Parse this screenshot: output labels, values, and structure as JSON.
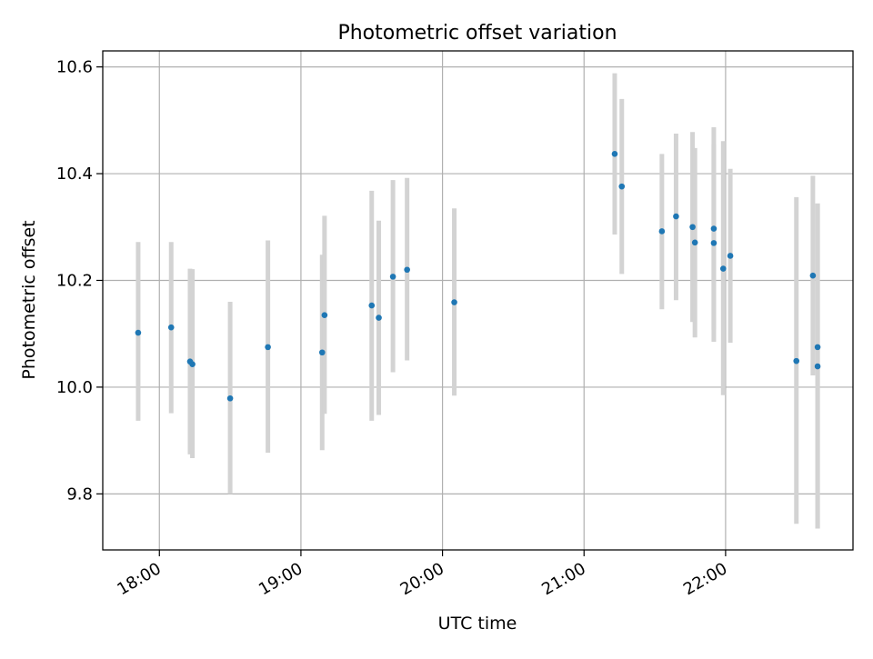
{
  "chart_data": {
    "type": "scatter",
    "title": "Photometric offset variation",
    "xlabel": "UTC time",
    "ylabel": "Photometric offset",
    "xlim": [
      "17:36",
      "22:54"
    ],
    "ylim": [
      9.695,
      10.63
    ],
    "xticks": [
      "18:00",
      "19:00",
      "20:00",
      "21:00",
      "22:00"
    ],
    "yticks": [
      9.8,
      10.0,
      10.2,
      10.4,
      10.6
    ],
    "ytick_labels": [
      "9.8",
      "10.0",
      "10.2",
      "10.4",
      "10.6"
    ],
    "grid": true,
    "colors": {
      "marker": "#1f77b4",
      "errorbar": "#d3d3d3",
      "grid": "#b0b0b0"
    },
    "points": [
      {
        "x": "17:51",
        "y": 10.102,
        "ylow": 9.937,
        "yhigh": 10.272
      },
      {
        "x": "18:05",
        "y": 10.112,
        "ylow": 9.951,
        "yhigh": 10.272
      },
      {
        "x": "18:13",
        "y": 10.048,
        "ylow": 9.874,
        "yhigh": 10.222
      },
      {
        "x": "18:14",
        "y": 10.043,
        "ylow": 9.867,
        "yhigh": 10.221
      },
      {
        "x": "18:30",
        "y": 9.979,
        "ylow": 9.8,
        "yhigh": 10.16
      },
      {
        "x": "18:46",
        "y": 10.075,
        "ylow": 9.877,
        "yhigh": 10.275
      },
      {
        "x": "19:09",
        "y": 10.065,
        "ylow": 9.882,
        "yhigh": 10.248
      },
      {
        "x": "19:10",
        "y": 10.135,
        "ylow": 9.95,
        "yhigh": 10.321
      },
      {
        "x": "19:30",
        "y": 10.153,
        "ylow": 9.937,
        "yhigh": 10.368
      },
      {
        "x": "19:33",
        "y": 10.13,
        "ylow": 9.948,
        "yhigh": 10.312
      },
      {
        "x": "19:39",
        "y": 10.207,
        "ylow": 10.028,
        "yhigh": 10.388
      },
      {
        "x": "19:45",
        "y": 10.22,
        "ylow": 10.05,
        "yhigh": 10.392
      },
      {
        "x": "20:05",
        "y": 10.159,
        "ylow": 9.984,
        "yhigh": 10.335
      },
      {
        "x": "21:13",
        "y": 10.437,
        "ylow": 10.286,
        "yhigh": 10.588
      },
      {
        "x": "21:16",
        "y": 10.376,
        "ylow": 10.212,
        "yhigh": 10.54
      },
      {
        "x": "21:33",
        "y": 10.292,
        "ylow": 10.146,
        "yhigh": 10.437
      },
      {
        "x": "21:39",
        "y": 10.32,
        "ylow": 10.163,
        "yhigh": 10.475
      },
      {
        "x": "21:46",
        "y": 10.3,
        "ylow": 10.122,
        "yhigh": 10.478
      },
      {
        "x": "21:47",
        "y": 10.271,
        "ylow": 10.093,
        "yhigh": 10.448
      },
      {
        "x": "21:55",
        "y": 10.297,
        "ylow": 10.108,
        "yhigh": 10.487
      },
      {
        "x": "21:55",
        "y": 10.27,
        "ylow": 10.085,
        "yhigh": 10.455
      },
      {
        "x": "21:59",
        "y": 10.222,
        "ylow": 9.985,
        "yhigh": 10.461
      },
      {
        "x": "22:02",
        "y": 10.246,
        "ylow": 10.083,
        "yhigh": 10.409
      },
      {
        "x": "22:30",
        "y": 10.049,
        "ylow": 9.744,
        "yhigh": 10.356
      },
      {
        "x": "22:37",
        "y": 10.209,
        "ylow": 10.022,
        "yhigh": 10.396
      },
      {
        "x": "22:39",
        "y": 10.075,
        "ylow": 9.735,
        "yhigh": 10.344
      },
      {
        "x": "22:39",
        "y": 10.039,
        "ylow": 9.735,
        "yhigh": 10.344
      }
    ]
  }
}
